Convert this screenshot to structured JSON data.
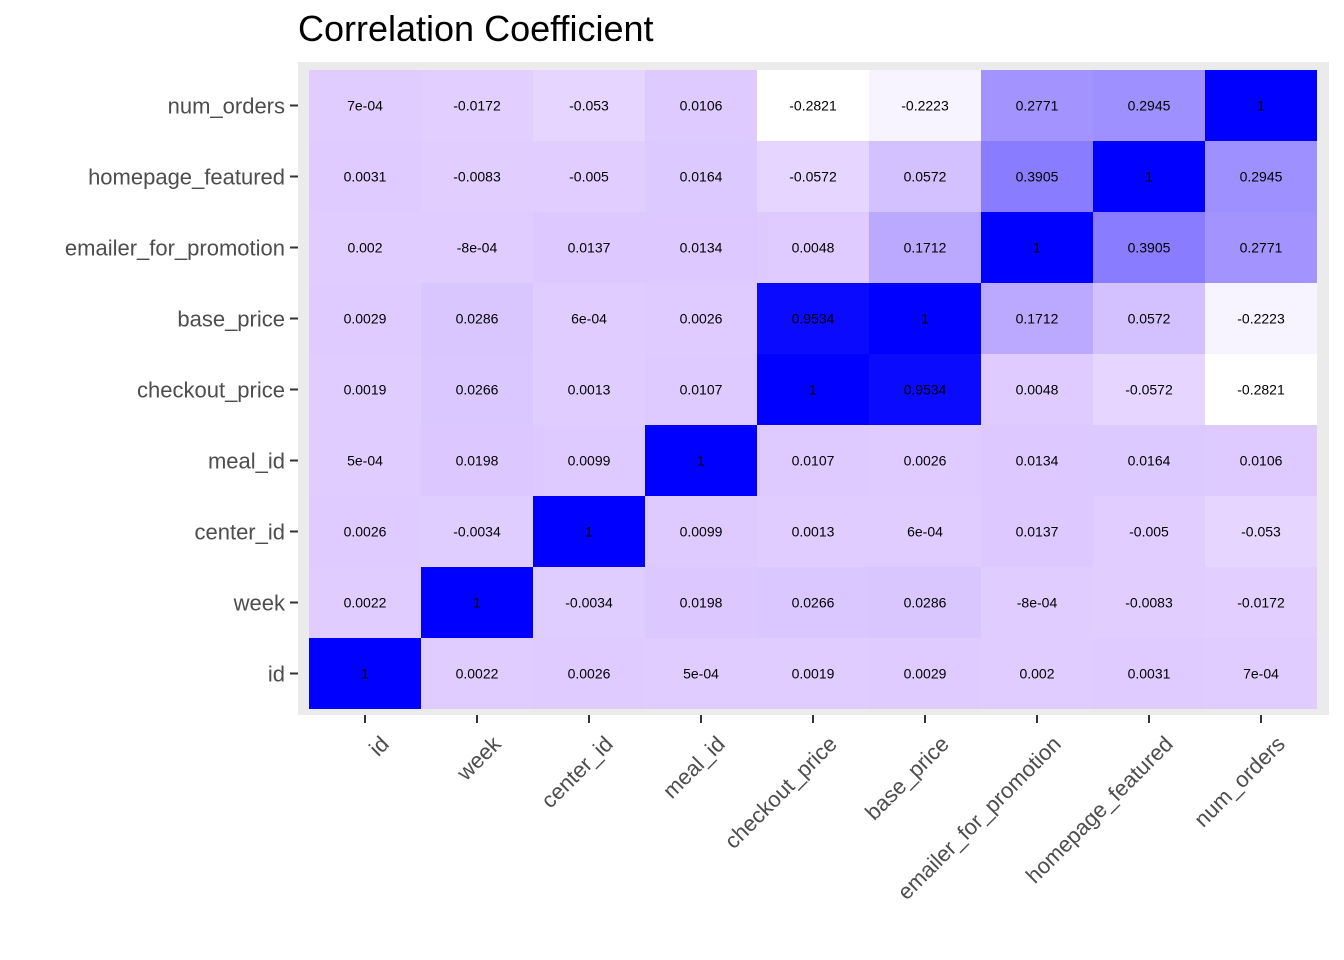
{
  "chart_data": {
    "type": "heatmap",
    "title": "Correlation Coefficient",
    "xlabel": "",
    "ylabel": "",
    "variables": [
      "id",
      "week",
      "center_id",
      "meal_id",
      "checkout_price",
      "base_price",
      "emailer_for_promotion",
      "homepage_featured",
      "num_orders"
    ],
    "x_categories": [
      "id",
      "week",
      "center_id",
      "meal_id",
      "checkout_price",
      "base_price",
      "emailer_for_promotion",
      "homepage_featured",
      "num_orders"
    ],
    "y_categories": [
      "id",
      "week",
      "center_id",
      "meal_id",
      "checkout_price",
      "base_price",
      "emailer_for_promotion",
      "homepage_featured",
      "num_orders"
    ],
    "values": [
      [
        1,
        0.0022,
        0.0026,
        0.0005,
        0.0019,
        0.0029,
        0.002,
        0.0031,
        0.0007
      ],
      [
        0.0022,
        1,
        -0.0034,
        0.0198,
        0.0266,
        0.0286,
        -0.0008,
        -0.0083,
        -0.0172
      ],
      [
        0.0026,
        -0.0034,
        1,
        0.0099,
        0.0013,
        0.0006,
        0.0137,
        -0.005,
        -0.053
      ],
      [
        0.0005,
        0.0198,
        0.0099,
        1,
        0.0107,
        0.0026,
        0.0134,
        0.0164,
        0.0106
      ],
      [
        0.0019,
        0.0266,
        0.0013,
        0.0107,
        1,
        0.9534,
        0.0048,
        -0.0572,
        -0.2821
      ],
      [
        0.0029,
        0.0286,
        0.0006,
        0.0026,
        0.9534,
        1,
        0.1712,
        0.0572,
        -0.2223
      ],
      [
        0.002,
        -0.0008,
        0.0137,
        0.0134,
        0.0048,
        0.1712,
        1,
        0.3905,
        0.2771
      ],
      [
        0.0031,
        -0.0083,
        -0.005,
        0.0164,
        -0.0572,
        0.0572,
        0.3905,
        1,
        0.2945
      ],
      [
        0.0007,
        -0.0172,
        -0.053,
        0.0106,
        -0.2821,
        -0.2223,
        0.2771,
        0.2945,
        1
      ]
    ],
    "labels": [
      [
        "1",
        "0.0022",
        "0.0026",
        "5e-04",
        "0.0019",
        "0.0029",
        "0.002",
        "0.0031",
        "7e-04"
      ],
      [
        "0.0022",
        "1",
        "-0.0034",
        "0.0198",
        "0.0266",
        "0.0286",
        "-8e-04",
        "-0.0083",
        "-0.0172"
      ],
      [
        "0.0026",
        "-0.0034",
        "1",
        "0.0099",
        "0.0013",
        "6e-04",
        "0.0137",
        "-0.005",
        "-0.053"
      ],
      [
        "5e-04",
        "0.0198",
        "0.0099",
        "1",
        "0.0107",
        "0.0026",
        "0.0134",
        "0.0164",
        "0.0106"
      ],
      [
        "0.0019",
        "0.0266",
        "0.0013",
        "0.0107",
        "1",
        "0.9534",
        "0.0048",
        "-0.0572",
        "-0.2821"
      ],
      [
        "0.0029",
        "0.0286",
        "6e-04",
        "0.0026",
        "0.9534",
        "1",
        "0.1712",
        "0.0572",
        "-0.2223"
      ],
      [
        "0.002",
        "-8e-04",
        "0.0137",
        "0.0134",
        "0.0048",
        "0.1712",
        "1",
        "0.3905",
        "0.2771"
      ],
      [
        "0.0031",
        "-0.0083",
        "-0.005",
        "0.0164",
        "-0.0572",
        "0.0572",
        "0.3905",
        "1",
        "0.2945"
      ],
      [
        "7e-04",
        "-0.0172",
        "-0.053",
        "0.0106",
        "-0.2821",
        "-0.2223",
        "0.2771",
        "0.2945",
        "1"
      ]
    ],
    "color_scale": {
      "low_value": -0.2821,
      "mid_value": 0.0,
      "high_value": 1,
      "low_color": "#ffffff",
      "mid_color": "#e0ccff",
      "high_color": "#0000ff"
    },
    "panel_background": "#ebebeb",
    "legend": "none"
  }
}
